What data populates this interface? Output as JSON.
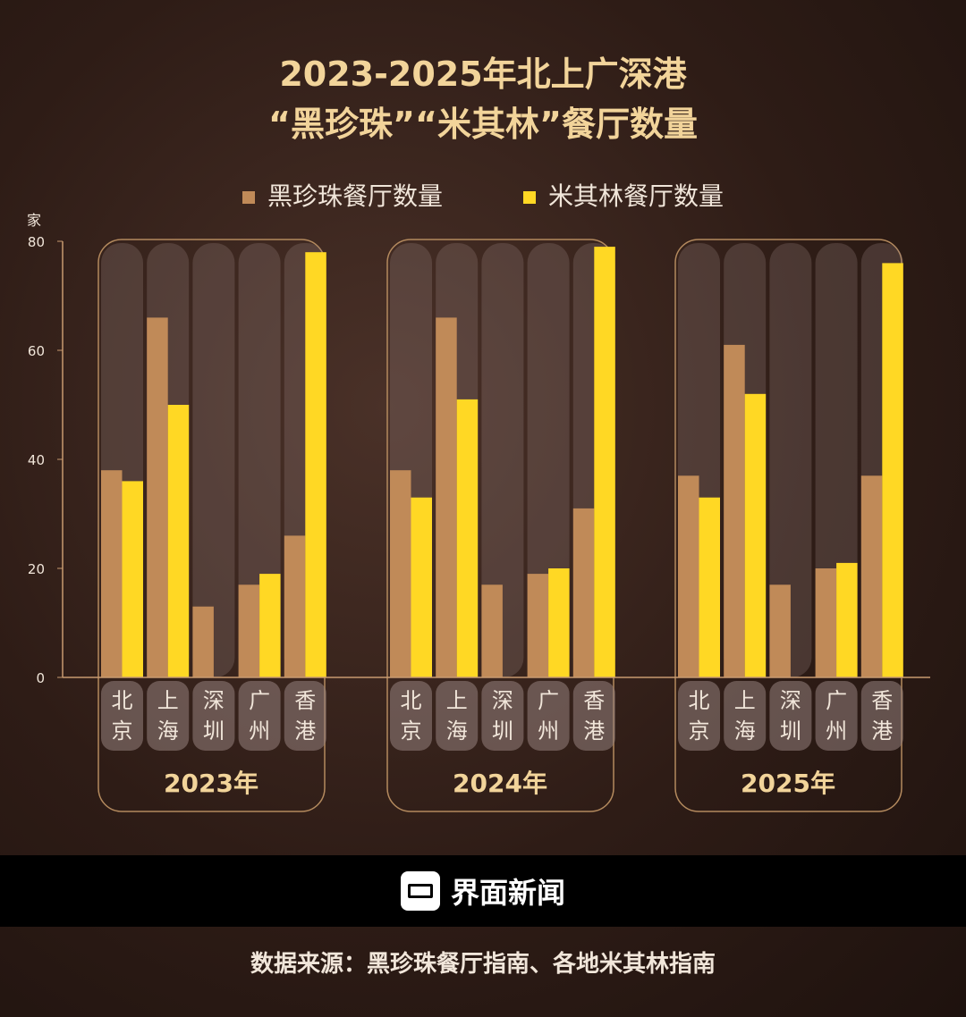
{
  "title_line1": "2023-2025年北上广深港",
  "title_line2": "“黑珍珠”“米其林”餐厅数量",
  "footer": {
    "brand": "界面新闻",
    "source": "数据来源：黑珍珠餐厅指南、各地米其林指南"
  },
  "chart_data": {
    "type": "bar",
    "title": "2023-2025年北上广深港“黑珍珠”“米其林”餐厅数量",
    "ylabel": "家",
    "ylim": [
      0,
      80
    ],
    "yticks": [
      "0",
      "20",
      "40",
      "60",
      "80"
    ],
    "groups": [
      "2023年",
      "2024年",
      "2025年"
    ],
    "categories": [
      "北京",
      "上海",
      "深圳",
      "广州",
      "香港"
    ],
    "legend_position": "top",
    "series": [
      {
        "name": "黑珍珠餐厅数量",
        "color": "#c08a58",
        "values": [
          [
            38,
            66,
            13,
            17,
            26
          ],
          [
            38,
            66,
            17,
            19,
            31
          ],
          [
            37,
            61,
            17,
            20,
            37
          ]
        ]
      },
      {
        "name": "米其林餐厅数量",
        "color": "#ffd824",
        "values": [
          [
            36,
            50,
            0,
            19,
            78
          ],
          [
            33,
            51,
            0,
            20,
            79
          ],
          [
            33,
            52,
            0,
            21,
            76
          ]
        ]
      }
    ]
  }
}
